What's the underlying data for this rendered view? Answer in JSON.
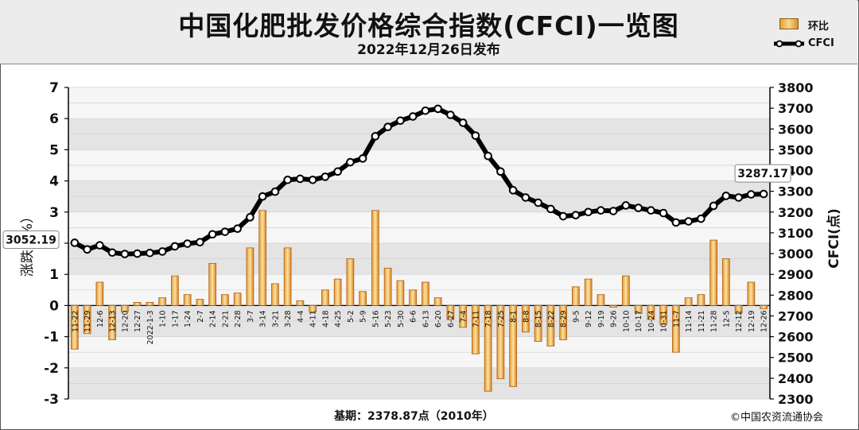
{
  "header": {
    "title": "中国化肥批发价格综合指数(CFCI)一览图",
    "subtitle": "2022年12月26日发布"
  },
  "legend": {
    "bar_label": "环比",
    "line_label": "CFCI"
  },
  "footer": {
    "basis": "基期：2378.87点（2010年）",
    "copyright": "©中国农资流通协会"
  },
  "colors": {
    "bar_fill": "#f2c265",
    "bar_edge": "#b8641a",
    "line": "#000000",
    "plot_band_a": "#e4e4e4",
    "plot_band_b": "#f6f6f6"
  },
  "chart_data": {
    "type": "bar+line",
    "ylabel_left": "涨跌（%）",
    "ylabel_right": "CFCI(点)",
    "ylim_left": [
      -3,
      7
    ],
    "ylim_right": [
      2300,
      3800
    ],
    "yticks_left": [
      "7",
      "6",
      "5",
      "4",
      "3",
      "2",
      "1",
      "0",
      "-1",
      "-2",
      "-3"
    ],
    "yticks_right": [
      "3800",
      "3700",
      "3600",
      "3500",
      "3400",
      "3300",
      "3200",
      "3100",
      "3000",
      "2900",
      "2800",
      "2700",
      "2600",
      "2500",
      "2400",
      "2300"
    ],
    "grid": "horizontal bands",
    "categories": [
      "11-22",
      "11-29",
      "12-6",
      "12-13",
      "12-20",
      "12-27",
      "2022-1-3",
      "1-10",
      "1-17",
      "1-24",
      "2-7",
      "2-14",
      "2-21",
      "2-28",
      "3-7",
      "3-14",
      "3-21",
      "3-28",
      "4-4",
      "4-11",
      "4-18",
      "4-25",
      "5-2",
      "5-9",
      "5-16",
      "5-23",
      "5-30",
      "6-6",
      "6-13",
      "6-20",
      "6-27",
      "7-4",
      "7-11",
      "7-18",
      "7-25",
      "8-1",
      "8-8",
      "8-15",
      "8-22",
      "8-29",
      "9-5",
      "9-12",
      "9-19",
      "9-26",
      "10-10",
      "10-17",
      "10-24",
      "10-31",
      "11-7",
      "11-14",
      "11-21",
      "11-28",
      "12-5",
      "12-12",
      "12-19",
      "12-26"
    ],
    "series": [
      {
        "name": "环比",
        "kind": "bar",
        "axis": "left",
        "values": [
          -1.4,
          -0.9,
          0.75,
          -1.1,
          -0.2,
          0.1,
          0.1,
          0.25,
          0.95,
          0.35,
          0.2,
          1.35,
          0.35,
          0.4,
          1.85,
          3.05,
          0.7,
          1.85,
          0.15,
          -0.2,
          0.5,
          0.85,
          1.5,
          0.45,
          3.05,
          1.2,
          0.8,
          0.5,
          0.75,
          0.25,
          -0.45,
          -0.7,
          -1.55,
          -2.75,
          -2.35,
          -2.6,
          -0.85,
          -1.15,
          -1.3,
          -1.1,
          0.6,
          0.85,
          0.35,
          -0.05,
          0.95,
          -0.25,
          -0.45,
          -0.6,
          -1.5,
          0.25,
          0.35,
          2.1,
          1.5,
          -0.25,
          0.75,
          -0.1
        ]
      },
      {
        "name": "CFCI",
        "kind": "line",
        "axis": "right",
        "values": [
          3052,
          3020,
          3040,
          3005,
          2998,
          3000,
          3003,
          3010,
          3035,
          3048,
          3055,
          3093,
          3105,
          3120,
          3175,
          3275,
          3298,
          3355,
          3360,
          3355,
          3370,
          3395,
          3440,
          3458,
          3565,
          3610,
          3640,
          3660,
          3688,
          3697,
          3668,
          3630,
          3568,
          3470,
          3395,
          3305,
          3270,
          3245,
          3215,
          3180,
          3185,
          3200,
          3208,
          3205,
          3232,
          3220,
          3208,
          3195,
          3150,
          3155,
          3168,
          3230,
          3278,
          3270,
          3285,
          3287
        ]
      }
    ],
    "annotations": [
      {
        "text": "3052.19",
        "at": "11-22"
      },
      {
        "text": "3287.17",
        "at": "12-26"
      }
    ]
  }
}
